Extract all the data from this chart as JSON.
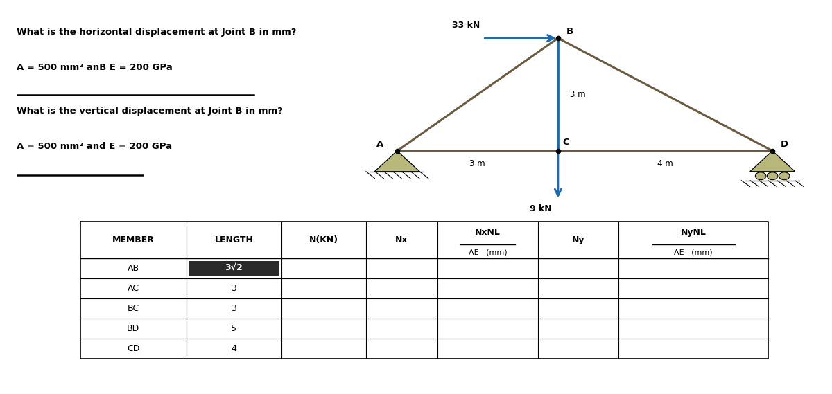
{
  "title_q1": "What is the horizontal displacement at Joint B in mm?",
  "title_q1b": "A = 500 mm² anB E = 200 GPa",
  "title_q2": "What is the vertical displacement at Joint B in mm?",
  "title_q2b": "A = 500 mm² and E = 200 GPa",
  "force_horizontal": "33 kN",
  "force_vertical": "9 kN",
  "dim_bc_vertical": "3 m",
  "dim_ac": "3 m",
  "dim_cd": "4 m",
  "table_headers_row1": [
    "MEMBER",
    "LENGTH",
    "N(KN)",
    "Nx",
    "NxNL",
    "Ny",
    "NyNL"
  ],
  "table_headers_row2": [
    "",
    "",
    "",
    "",
    "AE   (mm)",
    "",
    "AE   (mm)"
  ],
  "table_members": [
    "AB",
    "AC",
    "BC",
    "BD",
    "CD"
  ],
  "table_lengths": [
    "3√2",
    "3",
    "3",
    "5",
    "4"
  ],
  "bg_color": "#ffffff",
  "truss_color": "#6b5a3e",
  "truss_linewidth": 2.2,
  "arrow_color": "#1a6bb5",
  "bc_bar_color": "#1a6bb5",
  "text_color": "#1a1a1a",
  "support_color": "#b8b87a",
  "label_fontsize": 8.5,
  "question_fontsize": 9.5,
  "table_fontsize": 9,
  "highlight_bg": "#2a2a2a",
  "highlight_fg": "#ffffff"
}
